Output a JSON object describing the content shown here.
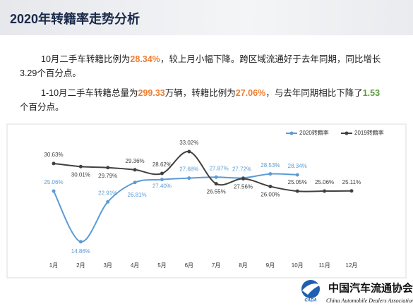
{
  "header": {
    "title": "2020年转籍率走势分析"
  },
  "paragraphs": [
    [
      {
        "text": "10月二手车转籍比例为"
      },
      {
        "text": "28.34%",
        "color": "#ed7d31"
      },
      {
        "text": "，较上月小幅下降。跨区域流通好于去年同期，同比增长3.29个百分点。"
      }
    ],
    [
      {
        "text": "1-10月二手车转籍总量为"
      },
      {
        "text": "299.33",
        "color": "#ed7d31"
      },
      {
        "text": "万辆，转籍比例为"
      },
      {
        "text": "27.06%",
        "color": "#ed7d31"
      },
      {
        "text": "，与去年同期相比下降了"
      },
      {
        "text": "1.53",
        "color": "#5a9e3a"
      },
      {
        "text": "个百分点。"
      }
    ]
  ],
  "chart_data": {
    "type": "line",
    "categories": [
      "1月",
      "2月",
      "3月",
      "4月",
      "5月",
      "6月",
      "7月",
      "8月",
      "9月",
      "10月",
      "11月",
      "12月"
    ],
    "ylim": [
      11,
      38
    ],
    "legend": "top-right",
    "series": [
      {
        "name": "2020转籍率",
        "color": "#5b9bd5",
        "values": [
          25.06,
          14.86,
          22.91,
          26.81,
          27.4,
          27.68,
          27.87,
          27.72,
          28.53,
          28.34,
          null,
          null
        ],
        "value_labels": [
          "25.06%",
          "14.86%",
          "22.91%",
          "26.81%",
          "27.40%",
          "27.68%",
          "27.87%",
          "27.72%",
          "28.53%",
          "28.34%",
          null,
          null
        ]
      },
      {
        "name": "2019转籍率",
        "color": "#404040",
        "values": [
          30.63,
          30.01,
          29.79,
          29.36,
          28.62,
          33.02,
          26.55,
          27.56,
          26.0,
          25.05,
          25.06,
          25.11
        ],
        "value_labels": [
          "30.63%",
          "30.01%",
          "29.79%",
          "29.36%",
          "28.62%",
          "33.02%",
          "26.55%",
          "27.56%",
          "26.00%",
          "25.05%",
          "25.06%",
          "25.11%"
        ]
      }
    ]
  },
  "logo": {
    "mark": "CADA",
    "name": "中国汽车流通协会",
    "english": "China Automobile Dealers Association"
  }
}
